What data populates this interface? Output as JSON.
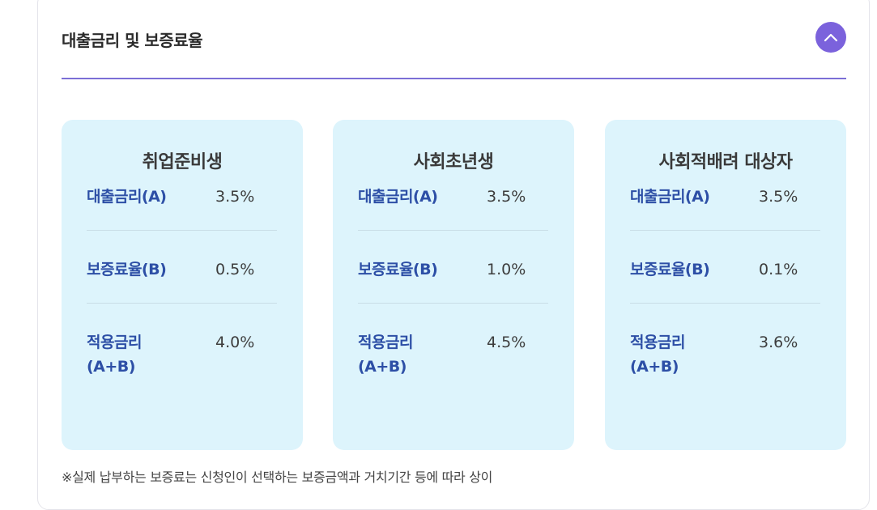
{
  "section": {
    "title": "대출금리 및 보증료율",
    "toggle_icon": "chevron-up-icon",
    "accent_color": "#7b62dc"
  },
  "cards": [
    {
      "title": "취업준비생",
      "rows": [
        {
          "label": "대출금리(A)",
          "value": "3.5%"
        },
        {
          "label": "보증료율(B)",
          "value": "0.5%"
        },
        {
          "label_line1": "적용금리",
          "label_line2": "(A+B)",
          "value": "4.0%"
        }
      ]
    },
    {
      "title": "사회초년생",
      "rows": [
        {
          "label": "대출금리(A)",
          "value": "3.5%"
        },
        {
          "label": "보증료율(B)",
          "value": "1.0%"
        },
        {
          "label_line1": "적용금리",
          "label_line2": "(A+B)",
          "value": "4.5%"
        }
      ]
    },
    {
      "title": "사회적배려 대상자",
      "rows": [
        {
          "label": "대출금리(A)",
          "value": "3.5%"
        },
        {
          "label": "보증료율(B)",
          "value": "0.1%"
        },
        {
          "label_line1": "적용금리",
          "label_line2": "(A+B)",
          "value": "3.6%"
        }
      ]
    }
  ],
  "note": "※실제 납부하는 보증료는 신청인이 선택하는 보증금액과 거치기간 등에 따라 상이"
}
